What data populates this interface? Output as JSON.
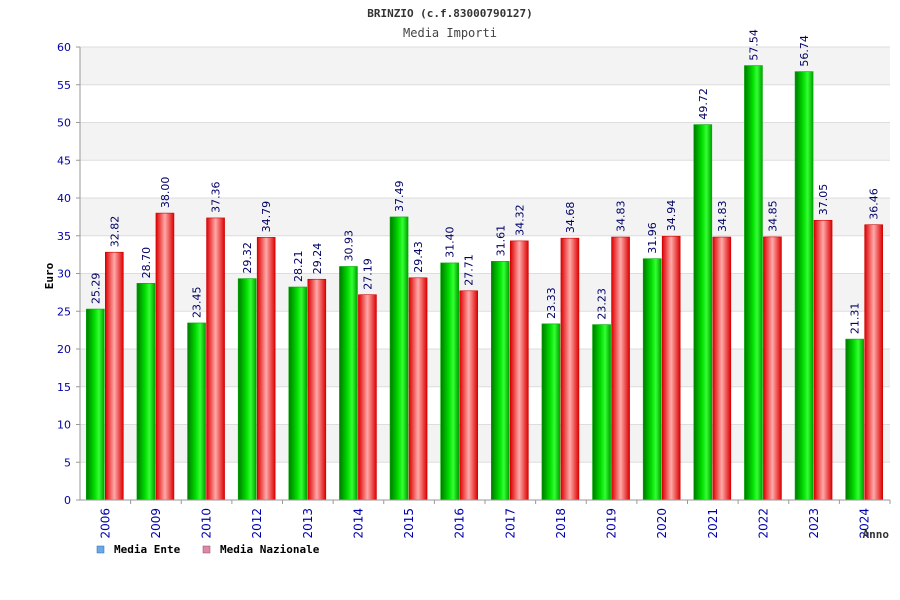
{
  "chart_data": {
    "type": "bar",
    "title": "BRINZIO (c.f.83000790127)",
    "subtitle": "Media Importi",
    "xlabel": "Anno",
    "ylabel": "Euro",
    "ylim": [
      0,
      60
    ],
    "ytick_step": 5,
    "grid": true,
    "legend_position": "bottom-left",
    "categories": [
      "2006",
      "2009",
      "2010",
      "2012",
      "2013",
      "2014",
      "2015",
      "2016",
      "2017",
      "2018",
      "2019",
      "2020",
      "2021",
      "2022",
      "2023",
      "2024"
    ],
    "series": [
      {
        "name": "Media Ente",
        "color": "#00cc00",
        "legend_color": "#66aaee",
        "values": [
          25.29,
          28.7,
          23.45,
          29.32,
          28.21,
          30.93,
          37.49,
          31.4,
          31.61,
          23.33,
          23.23,
          31.96,
          49.72,
          57.54,
          56.74,
          21.31
        ],
        "labels": [
          "25.29",
          "28.70",
          "23.45",
          "29.32",
          "28.21",
          "30.93",
          "37.49",
          "31.40",
          "31.61",
          "23.33",
          "23.23",
          "31.96",
          "49.72",
          "57.54",
          "56.74",
          "21.31"
        ]
      },
      {
        "name": "Media Nazionale",
        "color": "#ee1111",
        "legend_color": "#dd88aa",
        "values": [
          32.82,
          38.0,
          37.36,
          34.79,
          29.24,
          27.19,
          29.43,
          27.71,
          34.32,
          34.68,
          34.83,
          34.94,
          34.83,
          34.85,
          37.05,
          36.46
        ],
        "labels": [
          "32.82",
          "38.00",
          "37.36",
          "34.79",
          "29.24",
          "27.19",
          "29.43",
          "27.71",
          "34.32",
          "34.68",
          "34.83",
          "34.94",
          "34.83",
          "34.85",
          "37.05",
          "36.46"
        ]
      }
    ]
  }
}
